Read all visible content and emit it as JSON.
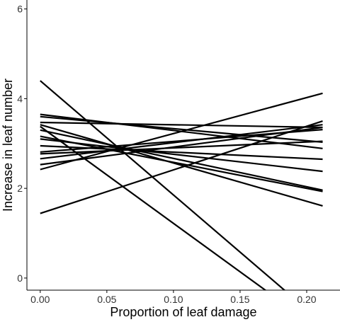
{
  "chart_data": {
    "type": "line",
    "xlabel": "Proportion of leaf damage",
    "ylabel": "Increase in leaf number",
    "xlim": [
      -0.01,
      0.225
    ],
    "ylim": [
      -0.27,
      6.2
    ],
    "xticks": [
      0.0,
      0.05,
      0.1,
      0.15,
      0.2
    ],
    "xtick_labels": [
      "0.00",
      "0.05",
      "0.10",
      "0.15",
      "0.20"
    ],
    "yticks": [
      0,
      2,
      4,
      6
    ],
    "ytick_labels": [
      "0",
      "2",
      "4",
      "6"
    ],
    "grid": false,
    "line_color": "#000000",
    "series": [
      {
        "x": [
          0.0,
          0.212
        ],
        "y": [
          4.4,
          -1.0
        ]
      },
      {
        "x": [
          0.0,
          0.212
        ],
        "y": [
          3.38,
          -1.2
        ]
      },
      {
        "x": [
          0.0,
          0.212
        ],
        "y": [
          1.44,
          3.5
        ]
      },
      {
        "x": [
          0.0,
          0.212
        ],
        "y": [
          2.42,
          4.12
        ]
      },
      {
        "x": [
          0.0,
          0.212
        ],
        "y": [
          3.65,
          2.89
        ]
      },
      {
        "x": [
          0.0,
          0.212
        ],
        "y": [
          3.6,
          3.03
        ]
      },
      {
        "x": [
          0.0,
          0.212
        ],
        "y": [
          3.47,
          3.36
        ]
      },
      {
        "x": [
          0.0,
          0.212
        ],
        "y": [
          3.42,
          1.61
        ]
      },
      {
        "x": [
          0.0,
          0.212
        ],
        "y": [
          3.3,
          1.96
        ]
      },
      {
        "x": [
          0.0,
          0.212
        ],
        "y": [
          3.16,
          1.93
        ]
      },
      {
        "x": [
          0.0,
          0.212
        ],
        "y": [
          3.1,
          2.38
        ]
      },
      {
        "x": [
          0.0,
          0.212
        ],
        "y": [
          2.95,
          2.65
        ]
      },
      {
        "x": [
          0.0,
          0.212
        ],
        "y": [
          2.81,
          3.31
        ]
      },
      {
        "x": [
          0.0,
          0.212
        ],
        "y": [
          2.77,
          3.05
        ]
      },
      {
        "x": [
          0.0,
          0.212
        ],
        "y": [
          2.66,
          3.42
        ]
      },
      {
        "x": [
          0.0,
          0.212
        ],
        "y": [
          2.53,
          3.36
        ]
      }
    ]
  }
}
